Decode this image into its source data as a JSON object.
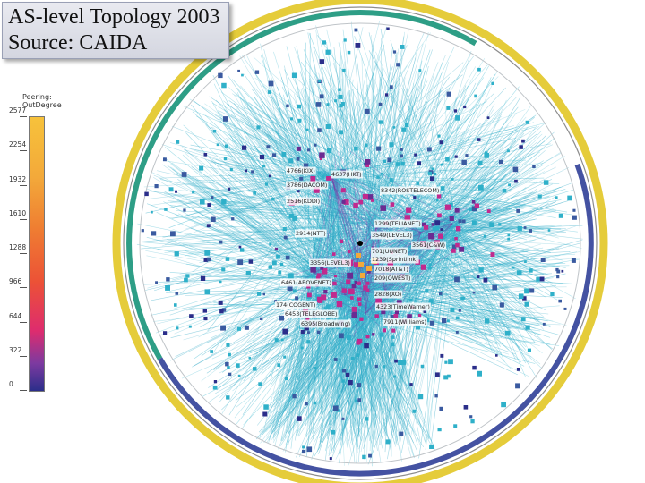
{
  "title_box": {
    "line1": "AS-level Topology 2003",
    "line2": "Source: CAIDA"
  },
  "legend": {
    "title_line1": "Peering:",
    "title_line2": "OutDegree",
    "ticks": [
      "2577",
      "2254",
      "1932",
      "1610",
      "1288",
      "966",
      "644",
      "322",
      "0"
    ]
  },
  "center_labels": [
    "4766(KIX)",
    "4637(HKT)",
    "3786(DACOM)",
    "2516(KDDI)",
    "2914(NTT)",
    "8342(ROSTELECOM)",
    "1299(TELIANET)",
    "3549(LEVEL3)",
    "3561(C&W)",
    "701(UUNET)",
    "1239(Sprintlink)",
    "3356(LEVEL3)",
    "7018(AT&T)",
    "209(QWEST)",
    "6461(ABOVENET)",
    "2828(XO)",
    "174(COGENT)",
    "4323(TimeWarner)",
    "6453(TELEGLOBE)",
    "7911(Williams)",
    "6395(Broadwing)"
  ],
  "colors": {
    "edge": "#3cb7cf",
    "edge_dense": "#2aa6c4",
    "node_low": "#2b2e8a",
    "node_mid": "#c12a8e",
    "node_high": "#f3a93a",
    "ring_outer": "#e8cf3c",
    "ring_teal": "#2e9e86",
    "ring_blue": "#4452a2"
  }
}
